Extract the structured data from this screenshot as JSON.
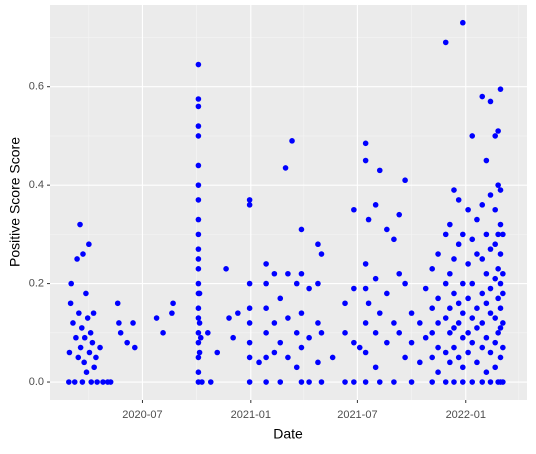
{
  "chart_data": {
    "type": "scatter",
    "x_label": "Date",
    "y_label": "Positive Score Score",
    "color": "#0000FF",
    "grid": true,
    "xlim": [
      "2020-01-26",
      "2022-04-15"
    ],
    "xticks": [
      {
        "value": "2020-07-01",
        "label": "2020-07"
      },
      {
        "value": "2021-01-01",
        "label": "2021-01"
      },
      {
        "value": "2021-07-01",
        "label": "2021-07"
      },
      {
        "value": "2022-01-01",
        "label": "2022-01"
      }
    ],
    "x_minor_ticks": [
      "2020-04-01",
      "2020-10-01",
      "2021-04-01",
      "2021-10-01",
      "2022-04-01"
    ],
    "ylim": [
      -0.0365,
      0.766
    ],
    "yticks": [
      {
        "value": 0,
        "label": "0.0"
      },
      0.2,
      0.4,
      0.6
    ],
    "y_minor_ticks": [
      0.1,
      0.3,
      0.5,
      0.7
    ],
    "x": [
      "2020-02-27",
      "2020-02-28",
      "2020-03-01",
      "2020-03-02",
      "2020-03-05",
      "2020-03-08",
      "2020-03-10",
      "2020-03-12",
      "2020-03-14",
      "2020-03-15",
      "2020-03-17",
      "2020-03-18",
      "2020-03-20",
      "2020-03-21",
      "2020-03-22",
      "2020-03-24",
      "2020-03-25",
      "2020-03-27",
      "2020-03-28",
      "2020-03-30",
      "2020-04-01",
      "2020-04-02",
      "2020-04-04",
      "2020-04-05",
      "2020-04-07",
      "2020-04-09",
      "2020-04-10",
      "2020-04-13",
      "2020-04-15",
      "2020-04-20",
      "2020-04-25",
      "2020-05-03",
      "2020-05-08",
      "2020-05-20",
      "2020-05-22",
      "2020-05-25",
      "2020-06-05",
      "2020-06-15",
      "2020-06-18",
      "2020-07-25",
      "2020-08-05",
      "2020-08-20",
      "2020-08-22",
      "2020-10-04",
      "2020-10-04",
      "2020-10-04",
      "2020-10-04",
      "2020-10-04",
      "2020-10-04",
      "2020-10-04",
      "2020-10-04",
      "2020-10-04",
      "2020-10-04",
      "2020-10-04",
      "2020-10-04",
      "2020-10-04",
      "2020-10-04",
      "2020-10-04",
      "2020-10-04",
      "2020-10-04",
      "2020-10-04",
      "2020-10-04",
      "2020-10-04",
      "2020-10-04",
      "2020-10-04",
      "2020-10-06",
      "2020-10-06",
      "2020-10-06",
      "2020-10-08",
      "2020-10-10",
      "2020-10-20",
      "2020-10-25",
      "2020-11-05",
      "2020-11-20",
      "2020-11-25",
      "2020-12-02",
      "2020-12-10",
      "2020-12-30",
      "2020-12-30",
      "2020-12-30",
      "2020-12-30",
      "2020-12-30",
      "2020-12-30",
      "2020-12-30",
      "2020-12-30",
      "2021-01-15",
      "2021-01-27",
      "2021-01-27",
      "2021-01-27",
      "2021-01-27",
      "2021-01-27",
      "2021-01-27",
      "2021-02-10",
      "2021-02-10",
      "2021-02-10",
      "2021-02-20",
      "2021-02-20",
      "2021-02-20",
      "2021-03-01",
      "2021-03-05",
      "2021-03-05",
      "2021-03-05",
      "2021-03-12",
      "2021-03-20",
      "2021-03-20",
      "2021-03-20",
      "2021-03-28",
      "2021-03-28",
      "2021-03-28",
      "2021-03-28",
      "2021-03-28",
      "2021-04-10",
      "2021-04-10",
      "2021-04-10",
      "2021-04-25",
      "2021-04-25",
      "2021-04-25",
      "2021-04-25",
      "2021-05-01",
      "2021-05-01",
      "2021-05-01",
      "2021-05-20",
      "2021-06-10",
      "2021-06-10",
      "2021-06-10",
      "2021-06-25",
      "2021-06-25",
      "2021-06-25",
      "2021-06-25",
      "2021-07-05",
      "2021-07-15",
      "2021-07-15",
      "2021-07-15",
      "2021-07-15",
      "2021-07-15",
      "2021-07-15",
      "2021-07-15",
      "2021-07-20",
      "2021-07-20",
      "2021-08-01",
      "2021-08-01",
      "2021-08-01",
      "2021-08-01",
      "2021-08-08",
      "2021-08-08",
      "2021-08-08",
      "2021-08-20",
      "2021-08-20",
      "2021-08-20",
      "2021-09-01",
      "2021-09-01",
      "2021-09-01",
      "2021-09-10",
      "2021-09-10",
      "2021-09-10",
      "2021-09-20",
      "2021-09-20",
      "2021-09-20",
      "2021-10-01",
      "2021-10-01",
      "2021-10-01",
      "2021-10-15",
      "2021-10-15",
      "2021-10-25",
      "2021-10-25",
      "2021-11-05",
      "2021-11-05",
      "2021-11-05",
      "2021-11-05",
      "2021-11-05",
      "2021-11-15",
      "2021-11-15",
      "2021-11-15",
      "2021-11-15",
      "2021-11-15",
      "2021-11-28",
      "2021-11-28",
      "2021-11-28",
      "2021-11-28",
      "2021-11-28",
      "2021-11-28",
      "2021-12-05",
      "2021-12-05",
      "2021-12-05",
      "2021-12-05",
      "2021-12-05",
      "2021-12-12",
      "2021-12-12",
      "2021-12-12",
      "2021-12-12",
      "2021-12-12",
      "2021-12-12",
      "2021-12-20",
      "2021-12-20",
      "2021-12-20",
      "2021-12-20",
      "2021-12-20",
      "2021-12-27",
      "2021-12-27",
      "2021-12-27",
      "2021-12-27",
      "2021-12-27",
      "2021-12-27",
      "2021-12-27",
      "2022-01-05",
      "2022-01-05",
      "2022-01-05",
      "2022-01-05",
      "2022-01-05",
      "2022-01-12",
      "2022-01-12",
      "2022-01-12",
      "2022-01-12",
      "2022-01-12",
      "2022-01-12",
      "2022-01-20",
      "2022-01-20",
      "2022-01-20",
      "2022-01-20",
      "2022-01-20",
      "2022-01-29",
      "2022-01-29",
      "2022-01-29",
      "2022-01-29",
      "2022-01-29",
      "2022-01-29",
      "2022-01-29",
      "2022-02-05",
      "2022-02-05",
      "2022-02-05",
      "2022-02-05",
      "2022-02-05",
      "2022-02-05",
      "2022-02-12",
      "2022-02-12",
      "2022-02-12",
      "2022-02-12",
      "2022-02-12",
      "2022-02-12",
      "2022-02-12",
      "2022-02-20",
      "2022-02-20",
      "2022-02-20",
      "2022-02-20",
      "2022-02-20",
      "2022-02-20",
      "2022-02-20",
      "2022-02-25",
      "2022-02-25",
      "2022-02-25",
      "2022-02-25",
      "2022-02-25",
      "2022-02-25",
      "2022-02-25",
      "2022-03-01",
      "2022-03-01",
      "2022-03-01",
      "2022-03-01",
      "2022-03-01",
      "2022-03-01",
      "2022-03-01",
      "2022-03-01",
      "2022-03-01",
      "2022-03-05",
      "2022-03-05",
      "2022-03-05",
      "2022-03-05",
      "2022-03-05",
      "2022-03-05"
    ],
    "values": [
      0,
      0.06,
      0.16,
      0.2,
      0.12,
      0,
      0.09,
      0.25,
      0.05,
      0.14,
      0.32,
      0.07,
      0.11,
      0,
      0.26,
      0.04,
      0.09,
      0.18,
      0.02,
      0.13,
      0.28,
      0.06,
      0.1,
      0,
      0.08,
      0.14,
      0.03,
      0.05,
      0,
      0.07,
      0,
      0,
      0,
      0.16,
      0.12,
      0.1,
      0.08,
      0.12,
      0.07,
      0.13,
      0.1,
      0.14,
      0.16,
      0,
      0.02,
      0.05,
      0.08,
      0.1,
      0.13,
      0.15,
      0.18,
      0.2,
      0.23,
      0.25,
      0.27,
      0.3,
      0.33,
      0.37,
      0.4,
      0.44,
      0.5,
      0.52,
      0.56,
      0.575,
      0.645,
      0.06,
      0.12,
      0.18,
      0.09,
      0,
      0.1,
      0,
      0.06,
      0.23,
      0.13,
      0.09,
      0.14,
      0.37,
      0.36,
      0.2,
      0.15,
      0.12,
      0.08,
      0.05,
      0,
      0.04,
      0.24,
      0.2,
      0.15,
      0.1,
      0.05,
      0,
      0.22,
      0.12,
      0.06,
      0.17,
      0.08,
      0,
      0.435,
      0.22,
      0.13,
      0.05,
      0.49,
      0.2,
      0.1,
      0.03,
      0.31,
      0.22,
      0.14,
      0.07,
      0,
      0.19,
      0.09,
      0,
      0.28,
      0.2,
      0.12,
      0.04,
      0.26,
      0.1,
      0,
      0.05,
      0.16,
      0.1,
      0,
      0.35,
      0.19,
      0.08,
      0,
      0.07,
      0.485,
      0.45,
      0.24,
      0.19,
      0.12,
      0.06,
      0,
      0.33,
      0.16,
      0.36,
      0.21,
      0.1,
      0.03,
      0.43,
      0.14,
      0,
      0.31,
      0.18,
      0.08,
      0.29,
      0.12,
      0,
      0.34,
      0.22,
      0.1,
      0.41,
      0.2,
      0.05,
      0.14,
      0.08,
      0,
      0.12,
      0.04,
      0.19,
      0.09,
      0.23,
      0.15,
      0.1,
      0.05,
      0,
      0.26,
      0.17,
      0.12,
      0.07,
      0.02,
      0.69,
      0.3,
      0.2,
      0.13,
      0.06,
      0,
      0.32,
      0.22,
      0.15,
      0.1,
      0.04,
      0.39,
      0.25,
      0.18,
      0.11,
      0.07,
      0,
      0.37,
      0.28,
      0.16,
      0.12,
      0.05,
      0.73,
      0.3,
      0.2,
      0.14,
      0.09,
      0.03,
      0,
      0.35,
      0.24,
      0.17,
      0.1,
      0.06,
      0.5,
      0.29,
      0.2,
      0.13,
      0.08,
      0,
      0.33,
      0.26,
      0.15,
      0.11,
      0.04,
      0.58,
      0.36,
      0.25,
      0.18,
      0.12,
      0.07,
      0,
      0.45,
      0.3,
      0.22,
      0.16,
      0.09,
      0.02,
      0.57,
      0.38,
      0.27,
      0.19,
      0.14,
      0.06,
      0,
      0.5,
      0.35,
      0.28,
      0.21,
      0.13,
      0.08,
      0.03,
      0.51,
      0.4,
      0.3,
      0.23,
      0.17,
      0.1,
      0,
      0.595,
      0.39,
      0.32,
      0.26,
      0.2,
      0.15,
      0.11,
      0.05,
      0,
      0.3,
      0.22,
      0.18,
      0.12,
      0.07,
      0
    ]
  }
}
